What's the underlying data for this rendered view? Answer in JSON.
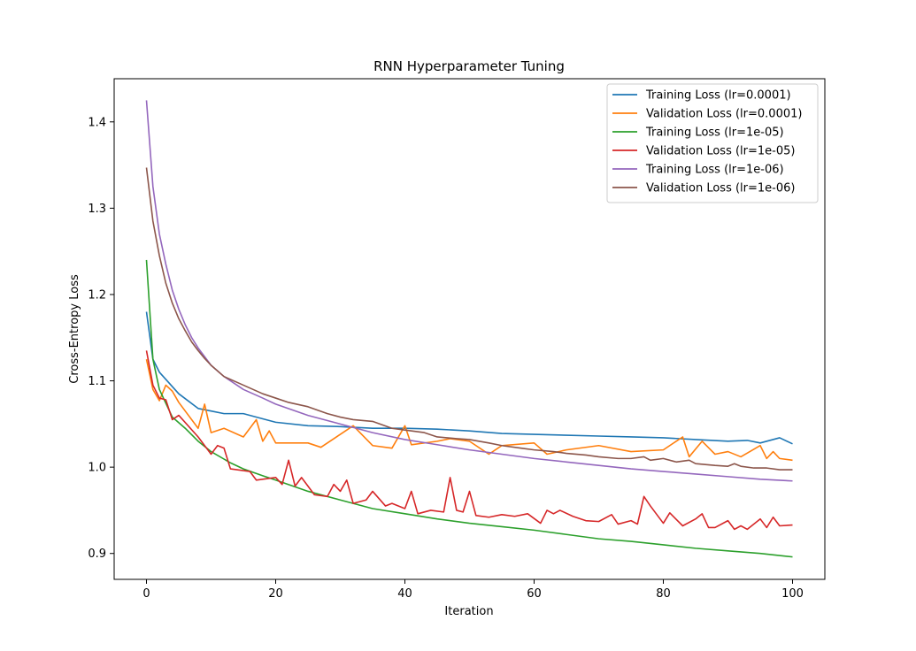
{
  "chart_data": {
    "type": "line",
    "title": "RNN Hyperparameter Tuning",
    "xlabel": "Iteration",
    "ylabel": "Cross-Entropy Loss",
    "xlim": [
      -5,
      105
    ],
    "ylim": [
      0.87,
      1.45
    ],
    "xticks": [
      0,
      20,
      40,
      60,
      80,
      100
    ],
    "yticks": [
      0.9,
      1.0,
      1.1,
      1.2,
      1.3,
      1.4
    ],
    "ytick_labels": [
      "0.9",
      "1.0",
      "1.1",
      "1.2",
      "1.3",
      "1.4"
    ],
    "grid": false,
    "legend_position": "top-right",
    "series": [
      {
        "name": "Training Loss (lr=0.0001)",
        "color": "#1f77b4",
        "points": [
          [
            0,
            1.18
          ],
          [
            1,
            1.125
          ],
          [
            2,
            1.11
          ],
          [
            5,
            1.085
          ],
          [
            8,
            1.068
          ],
          [
            10,
            1.065
          ],
          [
            12,
            1.062
          ],
          [
            15,
            1.062
          ],
          [
            18,
            1.056
          ],
          [
            20,
            1.052
          ],
          [
            25,
            1.048
          ],
          [
            30,
            1.047
          ],
          [
            35,
            1.045
          ],
          [
            40,
            1.045
          ],
          [
            45,
            1.044
          ],
          [
            50,
            1.042
          ],
          [
            55,
            1.039
          ],
          [
            60,
            1.038
          ],
          [
            65,
            1.037
          ],
          [
            70,
            1.036
          ],
          [
            75,
            1.035
          ],
          [
            80,
            1.034
          ],
          [
            85,
            1.032
          ],
          [
            90,
            1.03
          ],
          [
            93,
            1.031
          ],
          [
            95,
            1.028
          ],
          [
            98,
            1.034
          ],
          [
            100,
            1.027
          ]
        ]
      },
      {
        "name": "Validation Loss (lr=0.0001)",
        "color": "#ff7f0e",
        "points": [
          [
            0,
            1.125
          ],
          [
            1,
            1.09
          ],
          [
            2,
            1.077
          ],
          [
            3,
            1.095
          ],
          [
            4,
            1.088
          ],
          [
            5,
            1.075
          ],
          [
            8,
            1.045
          ],
          [
            9,
            1.073
          ],
          [
            10,
            1.04
          ],
          [
            12,
            1.045
          ],
          [
            15,
            1.035
          ],
          [
            17,
            1.055
          ],
          [
            18,
            1.03
          ],
          [
            19,
            1.042
          ],
          [
            20,
            1.028
          ],
          [
            25,
            1.028
          ],
          [
            27,
            1.023
          ],
          [
            30,
            1.038
          ],
          [
            32,
            1.048
          ],
          [
            35,
            1.025
          ],
          [
            38,
            1.022
          ],
          [
            40,
            1.048
          ],
          [
            41,
            1.026
          ],
          [
            45,
            1.03
          ],
          [
            47,
            1.033
          ],
          [
            50,
            1.03
          ],
          [
            53,
            1.015
          ],
          [
            55,
            1.025
          ],
          [
            60,
            1.028
          ],
          [
            62,
            1.015
          ],
          [
            65,
            1.02
          ],
          [
            70,
            1.025
          ],
          [
            75,
            1.018
          ],
          [
            80,
            1.02
          ],
          [
            83,
            1.035
          ],
          [
            84,
            1.012
          ],
          [
            86,
            1.03
          ],
          [
            88,
            1.015
          ],
          [
            90,
            1.018
          ],
          [
            92,
            1.012
          ],
          [
            95,
            1.025
          ],
          [
            96,
            1.01
          ],
          [
            97,
            1.018
          ],
          [
            98,
            1.01
          ],
          [
            100,
            1.008
          ]
        ]
      },
      {
        "name": "Training Loss (lr=1e-05)",
        "color": "#2ca02c",
        "points": [
          [
            0,
            1.24
          ],
          [
            1,
            1.125
          ],
          [
            2,
            1.09
          ],
          [
            4,
            1.058
          ],
          [
            6,
            1.045
          ],
          [
            8,
            1.03
          ],
          [
            10,
            1.018
          ],
          [
            13,
            1.005
          ],
          [
            15,
            0.998
          ],
          [
            18,
            0.99
          ],
          [
            20,
            0.985
          ],
          [
            25,
            0.972
          ],
          [
            30,
            0.962
          ],
          [
            35,
            0.952
          ],
          [
            40,
            0.946
          ],
          [
            45,
            0.94
          ],
          [
            50,
            0.935
          ],
          [
            55,
            0.931
          ],
          [
            60,
            0.927
          ],
          [
            65,
            0.922
          ],
          [
            70,
            0.917
          ],
          [
            75,
            0.914
          ],
          [
            80,
            0.91
          ],
          [
            85,
            0.906
          ],
          [
            90,
            0.903
          ],
          [
            95,
            0.9
          ],
          [
            100,
            0.896
          ]
        ]
      },
      {
        "name": "Validation Loss (lr=1e-05)",
        "color": "#d62728",
        "points": [
          [
            0,
            1.135
          ],
          [
            1,
            1.095
          ],
          [
            2,
            1.08
          ],
          [
            3,
            1.078
          ],
          [
            4,
            1.055
          ],
          [
            5,
            1.06
          ],
          [
            8,
            1.035
          ],
          [
            10,
            1.015
          ],
          [
            11,
            1.025
          ],
          [
            12,
            1.022
          ],
          [
            13,
            0.998
          ],
          [
            16,
            0.995
          ],
          [
            17,
            0.985
          ],
          [
            20,
            0.988
          ],
          [
            21,
            0.98
          ],
          [
            22,
            1.008
          ],
          [
            23,
            0.978
          ],
          [
            24,
            0.988
          ],
          [
            26,
            0.968
          ],
          [
            28,
            0.966
          ],
          [
            29,
            0.98
          ],
          [
            30,
            0.972
          ],
          [
            31,
            0.985
          ],
          [
            32,
            0.958
          ],
          [
            34,
            0.962
          ],
          [
            35,
            0.972
          ],
          [
            37,
            0.955
          ],
          [
            38,
            0.958
          ],
          [
            40,
            0.952
          ],
          [
            41,
            0.972
          ],
          [
            42,
            0.946
          ],
          [
            44,
            0.95
          ],
          [
            46,
            0.948
          ],
          [
            47,
            0.988
          ],
          [
            48,
            0.95
          ],
          [
            49,
            0.948
          ],
          [
            50,
            0.972
          ],
          [
            51,
            0.944
          ],
          [
            53,
            0.942
          ],
          [
            55,
            0.945
          ],
          [
            57,
            0.943
          ],
          [
            59,
            0.946
          ],
          [
            61,
            0.935
          ],
          [
            62,
            0.95
          ],
          [
            63,
            0.946
          ],
          [
            64,
            0.95
          ],
          [
            66,
            0.943
          ],
          [
            68,
            0.938
          ],
          [
            70,
            0.937
          ],
          [
            72,
            0.945
          ],
          [
            73,
            0.934
          ],
          [
            75,
            0.938
          ],
          [
            76,
            0.934
          ],
          [
            77,
            0.966
          ],
          [
            78,
            0.955
          ],
          [
            80,
            0.935
          ],
          [
            81,
            0.947
          ],
          [
            83,
            0.932
          ],
          [
            85,
            0.94
          ],
          [
            86,
            0.946
          ],
          [
            87,
            0.93
          ],
          [
            88,
            0.93
          ],
          [
            90,
            0.938
          ],
          [
            91,
            0.928
          ],
          [
            92,
            0.932
          ],
          [
            93,
            0.928
          ],
          [
            95,
            0.94
          ],
          [
            96,
            0.93
          ],
          [
            97,
            0.942
          ],
          [
            98,
            0.932
          ],
          [
            100,
            0.933
          ]
        ]
      },
      {
        "name": "Training Loss (lr=1e-06)",
        "color": "#9467bd",
        "points": [
          [
            0,
            1.425
          ],
          [
            1,
            1.325
          ],
          [
            2,
            1.27
          ],
          [
            3,
            1.235
          ],
          [
            4,
            1.205
          ],
          [
            5,
            1.183
          ],
          [
            6,
            1.165
          ],
          [
            7,
            1.15
          ],
          [
            8,
            1.138
          ],
          [
            9,
            1.128
          ],
          [
            10,
            1.118
          ],
          [
            12,
            1.105
          ],
          [
            15,
            1.09
          ],
          [
            18,
            1.08
          ],
          [
            20,
            1.073
          ],
          [
            25,
            1.06
          ],
          [
            30,
            1.05
          ],
          [
            35,
            1.04
          ],
          [
            40,
            1.032
          ],
          [
            45,
            1.026
          ],
          [
            50,
            1.02
          ],
          [
            55,
            1.015
          ],
          [
            60,
            1.01
          ],
          [
            65,
            1.006
          ],
          [
            70,
            1.002
          ],
          [
            75,
            0.998
          ],
          [
            80,
            0.995
          ],
          [
            85,
            0.992
          ],
          [
            90,
            0.989
          ],
          [
            95,
            0.986
          ],
          [
            100,
            0.984
          ]
        ]
      },
      {
        "name": "Validation Loss (lr=1e-06)",
        "color": "#8c564b",
        "points": [
          [
            0,
            1.347
          ],
          [
            1,
            1.285
          ],
          [
            2,
            1.245
          ],
          [
            3,
            1.213
          ],
          [
            4,
            1.19
          ],
          [
            5,
            1.172
          ],
          [
            6,
            1.158
          ],
          [
            7,
            1.145
          ],
          [
            8,
            1.135
          ],
          [
            9,
            1.126
          ],
          [
            10,
            1.118
          ],
          [
            12,
            1.105
          ],
          [
            15,
            1.095
          ],
          [
            18,
            1.085
          ],
          [
            20,
            1.08
          ],
          [
            22,
            1.075
          ],
          [
            25,
            1.07
          ],
          [
            28,
            1.062
          ],
          [
            30,
            1.058
          ],
          [
            32,
            1.055
          ],
          [
            35,
            1.053
          ],
          [
            38,
            1.045
          ],
          [
            40,
            1.043
          ],
          [
            43,
            1.04
          ],
          [
            45,
            1.035
          ],
          [
            48,
            1.033
          ],
          [
            50,
            1.032
          ],
          [
            53,
            1.028
          ],
          [
            55,
            1.025
          ],
          [
            58,
            1.022
          ],
          [
            60,
            1.02
          ],
          [
            63,
            1.018
          ],
          [
            65,
            1.016
          ],
          [
            68,
            1.014
          ],
          [
            70,
            1.012
          ],
          [
            73,
            1.01
          ],
          [
            75,
            1.01
          ],
          [
            77,
            1.012
          ],
          [
            78,
            1.008
          ],
          [
            80,
            1.01
          ],
          [
            82,
            1.006
          ],
          [
            84,
            1.008
          ],
          [
            85,
            1.004
          ],
          [
            88,
            1.002
          ],
          [
            90,
            1.001
          ],
          [
            91,
            1.004
          ],
          [
            92,
            1.001
          ],
          [
            94,
            0.999
          ],
          [
            96,
            0.999
          ],
          [
            98,
            0.997
          ],
          [
            100,
            0.997
          ]
        ]
      }
    ]
  }
}
